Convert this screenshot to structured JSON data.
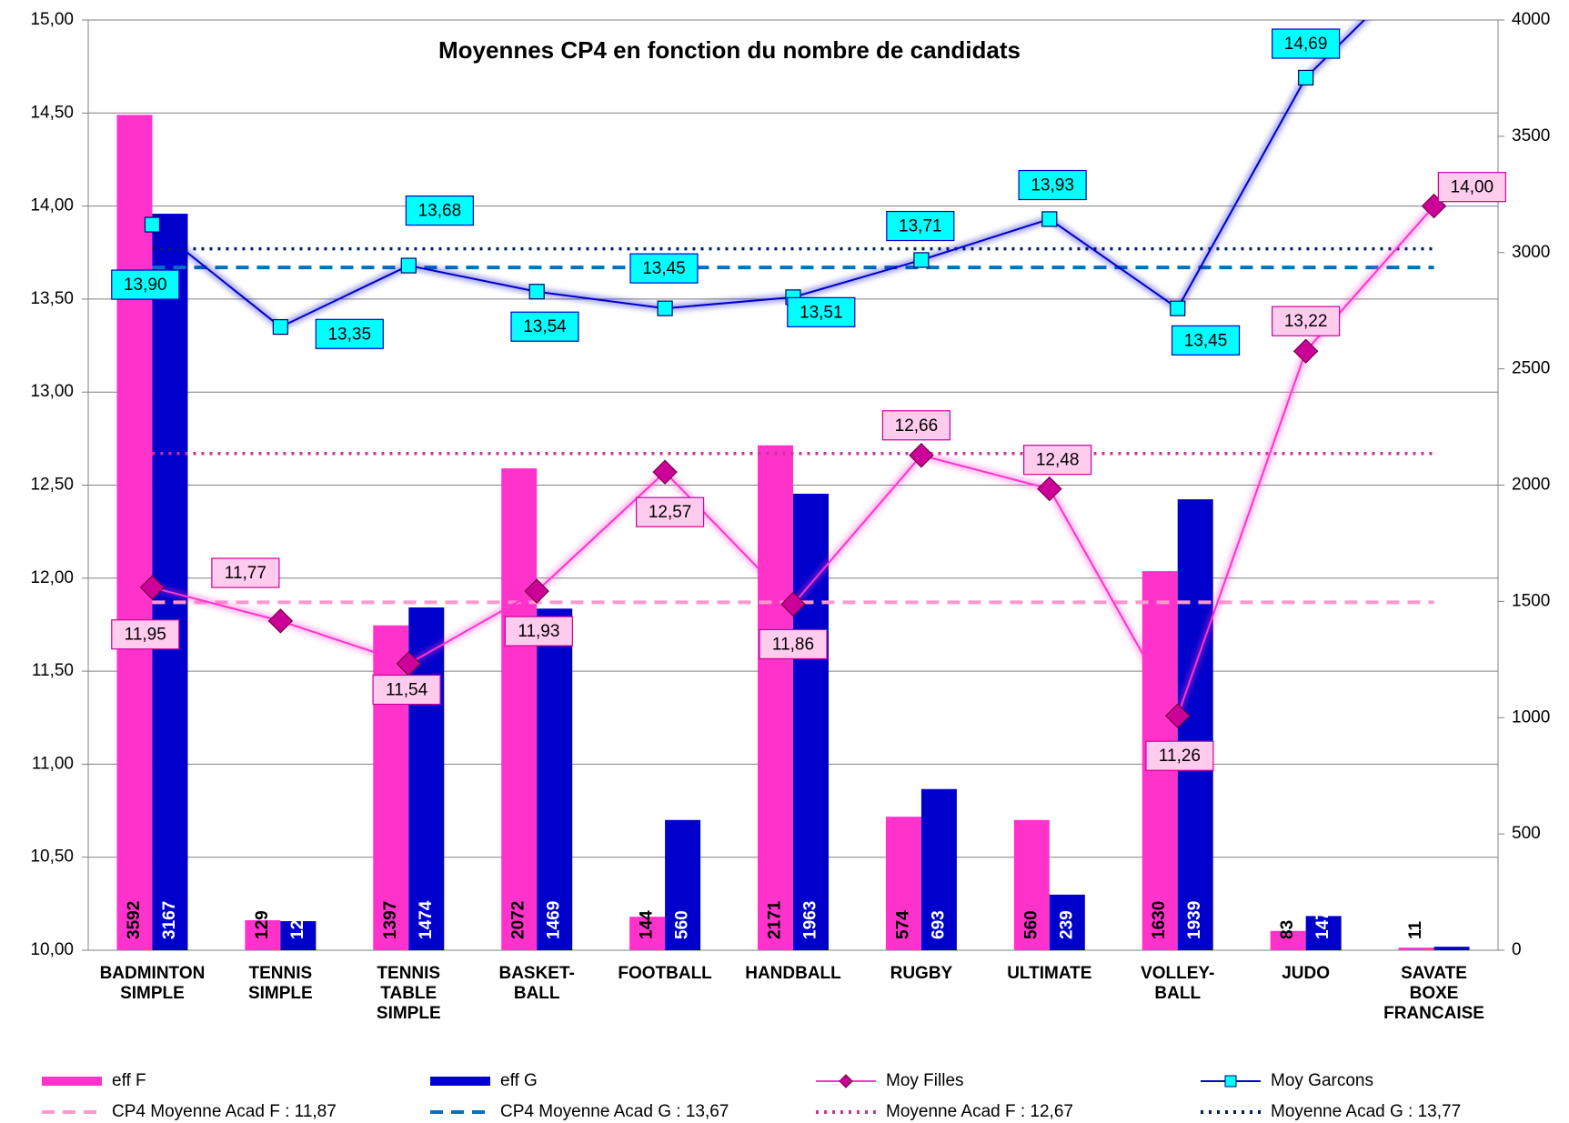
{
  "chart_data": {
    "type": "bar",
    "title": "Moyennes CP4 en fonction du nombre de candidats",
    "categories": [
      "BADMINTON\nSIMPLE",
      "TENNIS\nSIMPLE",
      "TENNIS\nTABLE\nSIMPLE",
      "BASKET-\nBALL",
      "FOOTBALL",
      "HANDBALL",
      "RUGBY",
      "ULTIMATE",
      "VOLLEY-\nBALL",
      "JUDO",
      "SAVATE\nBOXE\nFRANCAISE"
    ],
    "series": [
      {
        "name": "eff F",
        "type": "bar",
        "axis": "y2",
        "color": "#ff33cc",
        "label_color": "#000000",
        "values": [
          3592,
          129,
          1397,
          2072,
          144,
          2171,
          574,
          560,
          1630,
          83,
          11
        ]
      },
      {
        "name": "eff G",
        "type": "bar",
        "axis": "y2",
        "color": "#0000cc",
        "label_color": "#ffffff",
        "values": [
          3167,
          125,
          1474,
          1469,
          560,
          1963,
          693,
          239,
          1939,
          147,
          15
        ]
      },
      {
        "name": "Moy Filles",
        "type": "line",
        "marker": "diamond",
        "color": "#ff33cc",
        "marker_color": "#cc0099",
        "label_fill": "#ffccee",
        "values": [
          11.95,
          11.77,
          11.54,
          11.93,
          12.57,
          11.86,
          12.66,
          12.48,
          11.26,
          13.22,
          14.0
        ],
        "value_labels": [
          "11,95",
          "11,77",
          "11,54",
          "11,93",
          "12,57",
          "11,86",
          "12,66",
          "12,48",
          "11,26",
          "13,22",
          "14,00"
        ]
      },
      {
        "name": "Moy Garcons",
        "type": "line",
        "marker": "square",
        "color": "#0000cc",
        "marker_color": "#00ffff",
        "label_fill": "#00ffff",
        "values": [
          13.9,
          13.35,
          13.68,
          13.54,
          13.45,
          13.51,
          13.71,
          13.93,
          13.45,
          14.69,
          15.37
        ],
        "value_labels": [
          "13,90",
          "13,35",
          "13,68",
          "13,54",
          "13,45",
          "13,51",
          "13,71",
          "13,93",
          "13,45",
          "14,69",
          null
        ]
      }
    ],
    "reference_lines": [
      {
        "name": "CP4 Moyenne Acad F : 11,87",
        "value": 11.87,
        "color": "#ff99cc",
        "style": "dashed"
      },
      {
        "name": "CP4 Moyenne Acad G : 13,67",
        "value": 13.67,
        "color": "#0070c0",
        "style": "dashed"
      },
      {
        "name": "Moyenne Acad F : 12,67",
        "value": 12.67,
        "color": "#cc3399",
        "style": "dotted"
      },
      {
        "name": "Moyenne Acad G : 13,77",
        "value": 13.77,
        "color": "#002060",
        "style": "dotted"
      }
    ],
    "ylim": [
      10,
      15
    ],
    "yticks": [
      {
        "value": 10,
        "label": "10,00"
      },
      {
        "value": 10.5,
        "label": "10,50"
      },
      {
        "value": 11,
        "label": "11,00"
      },
      {
        "value": 11.5,
        "label": "11,50"
      },
      {
        "value": 12,
        "label": "12,00"
      },
      {
        "value": 12.5,
        "label": "12,50"
      },
      {
        "value": 13,
        "label": "13,00"
      },
      {
        "value": 13.5,
        "label": "13,50"
      },
      {
        "value": 14,
        "label": "14,00"
      },
      {
        "value": 14.5,
        "label": "14,50"
      },
      {
        "value": 15,
        "label": "15,00"
      }
    ],
    "y2lim": [
      0,
      4000
    ],
    "y2ticks": [
      0,
      500,
      1000,
      1500,
      2000,
      2500,
      3000,
      3500,
      4000
    ],
    "grid": true
  }
}
